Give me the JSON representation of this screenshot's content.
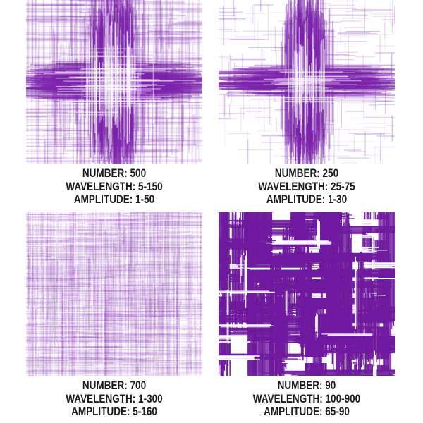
{
  "colors": {
    "background": "#ffffff",
    "purple": "#7b22ab",
    "purple_bold": "#6f1a9e",
    "white": "#ffffff",
    "text": "#1a1a1a"
  },
  "panels": [
    {
      "id": "texture-1",
      "style": "center-burst-dense",
      "params": {
        "number": 500,
        "wavelength_min": 5,
        "wavelength_max": 150,
        "amplitude_min": 1,
        "amplitude_max": 50
      },
      "caption": {
        "number": "NUMBER: 500",
        "wavelength": "WAVELENGTH: 5-150",
        "amplitude": "AMPLITUDE: 1-50"
      }
    },
    {
      "id": "texture-2",
      "style": "center-burst-sparse",
      "params": {
        "number": 250,
        "wavelength_min": 25,
        "wavelength_max": 75,
        "amplitude_min": 1,
        "amplitude_max": 30
      },
      "caption": {
        "number": "NUMBER: 250",
        "wavelength": "WAVELENGTH: 25-75",
        "amplitude": "AMPLITUDE: 1-30"
      }
    },
    {
      "id": "texture-3",
      "style": "uniform-fine",
      "params": {
        "number": 700,
        "wavelength_min": 1,
        "wavelength_max": 300,
        "amplitude_min": 5,
        "amplitude_max": 160
      },
      "caption": {
        "number": "NUMBER: 700",
        "wavelength": "WAVELENGTH: 1-300",
        "amplitude": "AMPLITUDE: 5-160"
      }
    },
    {
      "id": "texture-4",
      "style": "bold-blocks",
      "params": {
        "number": 90,
        "wavelength_min": 100,
        "wavelength_max": 900,
        "amplitude_min": 65,
        "amplitude_max": 90
      },
      "caption": {
        "number": "NUMBER: 90",
        "wavelength": "WAVELENGTH: 100-900",
        "amplitude": "AMPLITUDE: 65-90"
      }
    }
  ]
}
